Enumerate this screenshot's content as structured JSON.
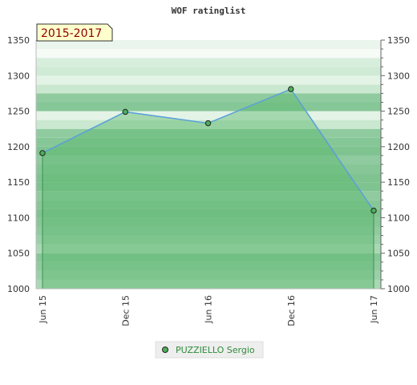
{
  "chart_data": {
    "type": "area",
    "title": "WOF ratinglist",
    "period_label": "2015-2017",
    "categories": [
      "Jun 15",
      "Dec 15",
      "Jun 16",
      "Dec 16",
      "Jun 17"
    ],
    "series": [
      {
        "name": "PUZZIELLO Sergio",
        "values": [
          1191,
          1249,
          1233,
          1281,
          1110
        ]
      }
    ],
    "xlabel": "",
    "ylabel": "",
    "ylim": [
      1000,
      1350
    ],
    "yticks": [
      1000,
      1050,
      1100,
      1150,
      1200,
      1250,
      1300,
      1350
    ],
    "right_axis": true,
    "grid": true,
    "legend_position": "bottom-center",
    "colors": {
      "line": "#5aa0d8",
      "area": "#5cb86c",
      "marker": "#4caf5a",
      "badge_bg": "#ffffcc",
      "badge_text": "#8b0000",
      "legend_text": "#2e8b3a"
    }
  }
}
